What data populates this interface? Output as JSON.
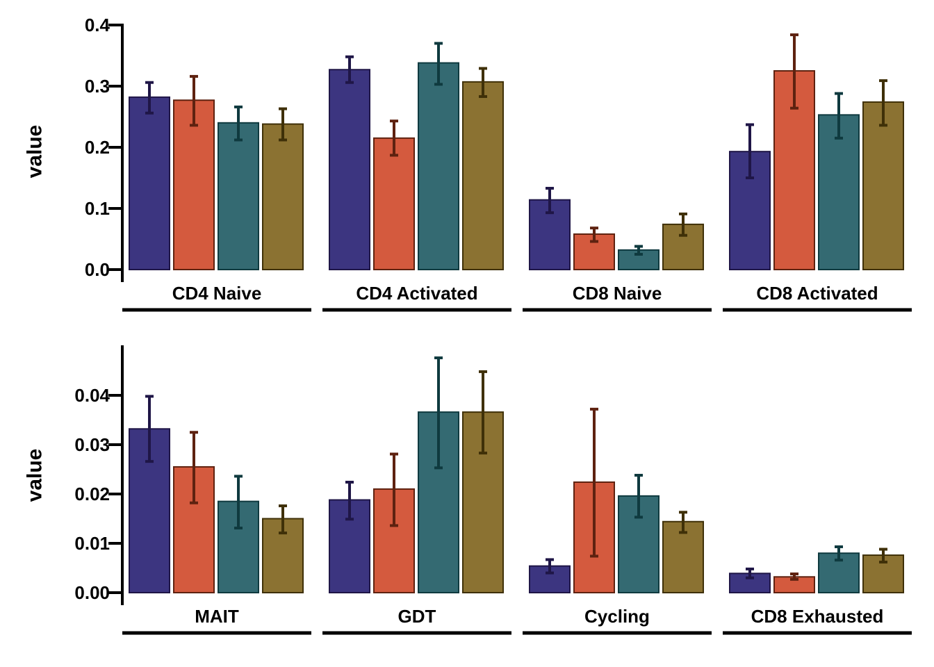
{
  "chart_data": [
    {
      "type": "bar",
      "ylabel": "value",
      "ylim": [
        0,
        0.4
      ],
      "yticks": [
        0.0,
        0.1,
        0.2,
        0.3,
        0.4
      ],
      "ytick_labels": [
        "0.0",
        "0.1",
        "0.2",
        "0.3",
        "0.4"
      ],
      "groups": [
        {
          "label": "CD4 Naive",
          "values": [
            0.282,
            0.277,
            0.24,
            0.238
          ],
          "err_low": [
            0.256,
            0.236,
            0.212,
            0.212
          ],
          "err_high": [
            0.306,
            0.316,
            0.266,
            0.263
          ]
        },
        {
          "label": "CD4 Activated",
          "values": [
            0.327,
            0.215,
            0.338,
            0.307
          ],
          "err_low": [
            0.306,
            0.187,
            0.303,
            0.283
          ],
          "err_high": [
            0.348,
            0.243,
            0.37,
            0.329
          ]
        },
        {
          "label": "CD8 Naive",
          "values": [
            0.114,
            0.058,
            0.032,
            0.074
          ],
          "err_low": [
            0.093,
            0.046,
            0.025,
            0.056
          ],
          "err_high": [
            0.133,
            0.068,
            0.038,
            0.091
          ]
        },
        {
          "label": "CD8 Activated",
          "values": [
            0.193,
            0.325,
            0.253,
            0.274
          ],
          "err_low": [
            0.15,
            0.264,
            0.215,
            0.236
          ],
          "err_high": [
            0.237,
            0.384,
            0.288,
            0.309
          ]
        }
      ]
    },
    {
      "type": "bar",
      "ylabel": "value",
      "ylim": [
        0,
        0.05
      ],
      "yticks": [
        0.0,
        0.01,
        0.02,
        0.03,
        0.04
      ],
      "ytick_labels": [
        "0.00",
        "0.01",
        "0.02",
        "0.03",
        "0.04"
      ],
      "groups": [
        {
          "label": "MAIT",
          "values": [
            0.0332,
            0.0255,
            0.0185,
            0.015
          ],
          "err_low": [
            0.0266,
            0.0182,
            0.0131,
            0.0121
          ],
          "err_high": [
            0.0398,
            0.0325,
            0.0236,
            0.0176
          ]
        },
        {
          "label": "GDT",
          "values": [
            0.0188,
            0.021,
            0.0366,
            0.0366
          ],
          "err_low": [
            0.0149,
            0.0136,
            0.0253,
            0.0283
          ],
          "err_high": [
            0.0224,
            0.0281,
            0.0476,
            0.0448
          ]
        },
        {
          "label": "Cycling",
          "values": [
            0.0054,
            0.0224,
            0.0196,
            0.0144
          ],
          "err_low": [
            0.004,
            0.0074,
            0.0153,
            0.0122
          ],
          "err_high": [
            0.0067,
            0.0372,
            0.0238,
            0.0163
          ]
        },
        {
          "label": "CD8 Exhausted",
          "values": [
            0.0039,
            0.0032,
            0.008,
            0.0076
          ],
          "err_low": [
            0.003,
            0.0027,
            0.0066,
            0.0062
          ],
          "err_high": [
            0.0048,
            0.0038,
            0.0093,
            0.0088
          ]
        }
      ]
    }
  ],
  "colors": {
    "fill": [
      "#3c3580",
      "#d45a3e",
      "#346a72",
      "#8b7232"
    ],
    "stroke": [
      "#1f1647",
      "#5e2210",
      "#0f3a3f",
      "#3f3008"
    ]
  }
}
